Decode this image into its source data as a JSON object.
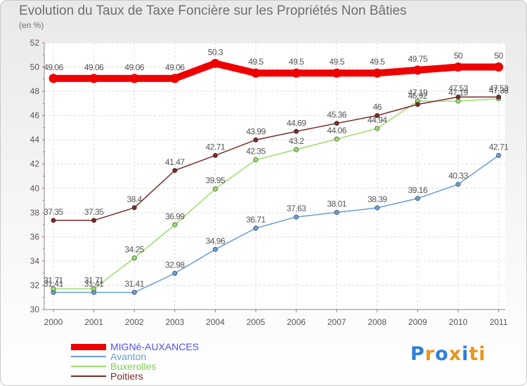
{
  "chart_data": {
    "type": "line",
    "title": "Evolution du Taux de Taxe Foncière sur les Propriétés Non Bâties",
    "subtitle": "(en %)",
    "xlabel": "",
    "ylabel": "",
    "x": [
      "2000",
      "2001",
      "2002",
      "2003",
      "2004",
      "2005",
      "2006",
      "2007",
      "2008",
      "2009",
      "2010",
      "2011"
    ],
    "ylim": [
      30,
      52
    ],
    "yticks": [
      30,
      32,
      34,
      36,
      38,
      40,
      42,
      44,
      46,
      48,
      50,
      52
    ],
    "grid": true,
    "legend_position": "bottom-left",
    "series": [
      {
        "name": "MIGNé-AUXANCES",
        "color": "#ee0000",
        "text_color": "#4f4fff",
        "values": [
          49.06,
          49.06,
          49.06,
          49.06,
          50.3,
          49.5,
          49.5,
          49.5,
          49.5,
          49.75,
          50,
          50
        ],
        "labels": [
          "49.06",
          "49.06",
          "49.06",
          "49.06",
          "50.3",
          "49.5",
          "49.5",
          "49.5",
          "49.5",
          "49.75",
          "50",
          "50"
        ]
      },
      {
        "name": "Avanton",
        "color": "#6a9ed4",
        "text_color": "#6a9ed4",
        "values": [
          31.41,
          31.41,
          31.41,
          32.98,
          34.96,
          36.71,
          37.63,
          38.01,
          38.39,
          39.16,
          40.33,
          42.71
        ],
        "labels": [
          "31.41",
          "31.41",
          "31.41",
          "32.98",
          "34.96",
          "36.71",
          "37.63",
          "38.01",
          "38.39",
          "39.16",
          "40.33",
          "42.71"
        ]
      },
      {
        "name": "Buxerolles",
        "color": "#9ade6a",
        "text_color": "#7ed04e",
        "values": [
          31.71,
          31.71,
          34.25,
          36.99,
          39.95,
          42.35,
          43.2,
          44.06,
          44.94,
          47.19,
          47.19,
          47.38
        ],
        "labels": [
          "31.71",
          "31.71",
          "34.25",
          "36.99",
          "39.95",
          "42.35",
          "43.2",
          "44.06",
          "44.94",
          "47.19",
          "47.19",
          "47.38"
        ]
      },
      {
        "name": "Poitiers",
        "color": "#7a2a2a",
        "text_color": "#7a2a2a",
        "values": [
          37.35,
          37.35,
          38.4,
          41.47,
          42.71,
          43.99,
          44.69,
          45.36,
          46,
          46.92,
          47.53,
          47.53
        ],
        "labels": [
          "37.35",
          "37.35",
          "38.4",
          "41.47",
          "42.71",
          "43.99",
          "44.69",
          "45.36",
          "46",
          "46.92",
          "47.53",
          "47.53"
        ]
      }
    ]
  },
  "logo": {
    "text": "Proxiti",
    "letter_colors": [
      "#2f7fd6",
      "#e8951a",
      "#2f7fd6",
      "#e8951a",
      "#2f7fd6",
      "#e8951a",
      "#e8951a"
    ]
  }
}
